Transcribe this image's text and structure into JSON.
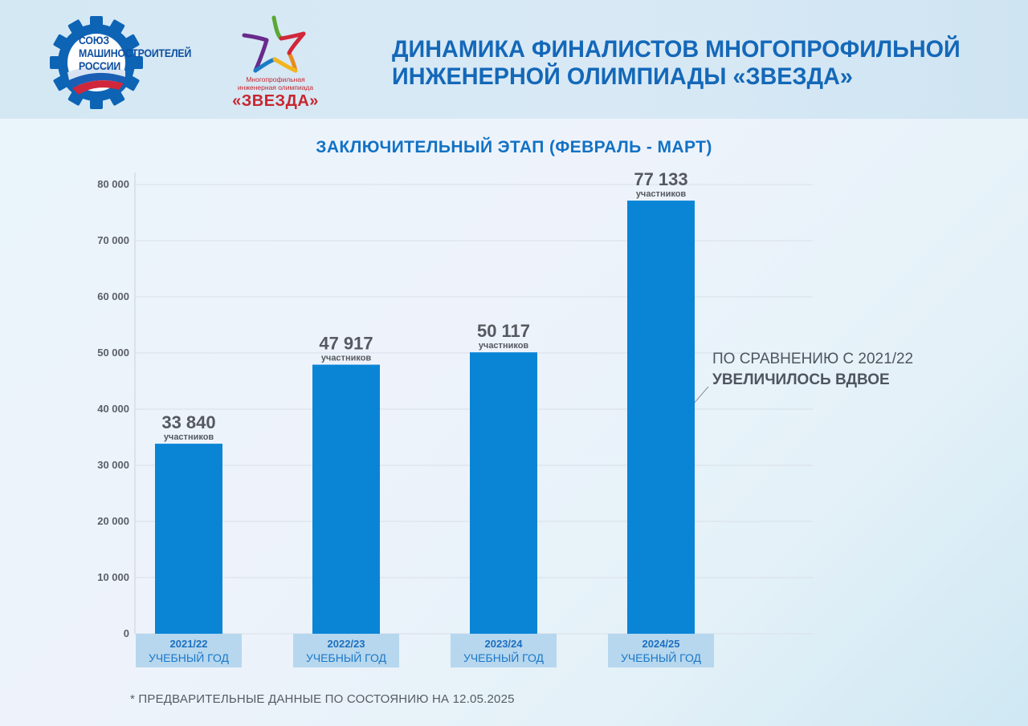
{
  "header": {
    "union_logo_text": [
      "СОЮЗ",
      "МАШИНОСТРОИТЕЛЕЙ",
      "РОССИИ"
    ],
    "olympiad_logo_caption": [
      "Многопрофильная",
      "инженерная олимпиада"
    ],
    "olympiad_logo_name": "«ЗВЕЗДА»",
    "title_line1": "ДИНАМИКА ФИНАЛИСТОВ МНОГОПРОФИЛЬНОЙ",
    "title_line2": "ИНЖЕНЕРНОЙ ОЛИМПИАДЫ «ЗВЕЗДА»"
  },
  "chart_data": {
    "type": "bar",
    "title": "ЗАКЛЮЧИТЕЛЬНЫЙ ЭТАП (ФЕВРАЛЬ - МАРТ)",
    "categories": [
      "2021/22",
      "2022/23",
      "2023/24",
      "2024/25"
    ],
    "category_sublabel": "УЧЕБНЫЙ ГОД",
    "values": [
      33840,
      47917,
      50117,
      77133
    ],
    "value_labels": [
      "33 840",
      "47 917",
      "50 117",
      "77 133"
    ],
    "value_unit_label": "участников",
    "ylim": [
      0,
      80000
    ],
    "yticks": [
      0,
      10000,
      20000,
      30000,
      40000,
      50000,
      60000,
      70000,
      80000
    ],
    "ytick_labels": [
      "0",
      "10 000",
      "20 000",
      "30 000",
      "40 000",
      "50 000",
      "60 000",
      "70 000",
      "80 000"
    ],
    "grid": true,
    "colors": {
      "bar": "#0a85d6",
      "label_box": "#b7d7ee",
      "grid": "#d8dfe8",
      "value_text": "#55595f"
    }
  },
  "annotation": {
    "line1": "ПО СРАВНЕНИЮ С 2021/22",
    "line2": "УВЕЛИЧИЛОСЬ ВДВОЕ"
  },
  "footnote": "* ПРЕДВАРИТЕЛЬНЫЕ ДАННЫЕ ПО СОСТОЯНИЮ НА 12.05.2025"
}
